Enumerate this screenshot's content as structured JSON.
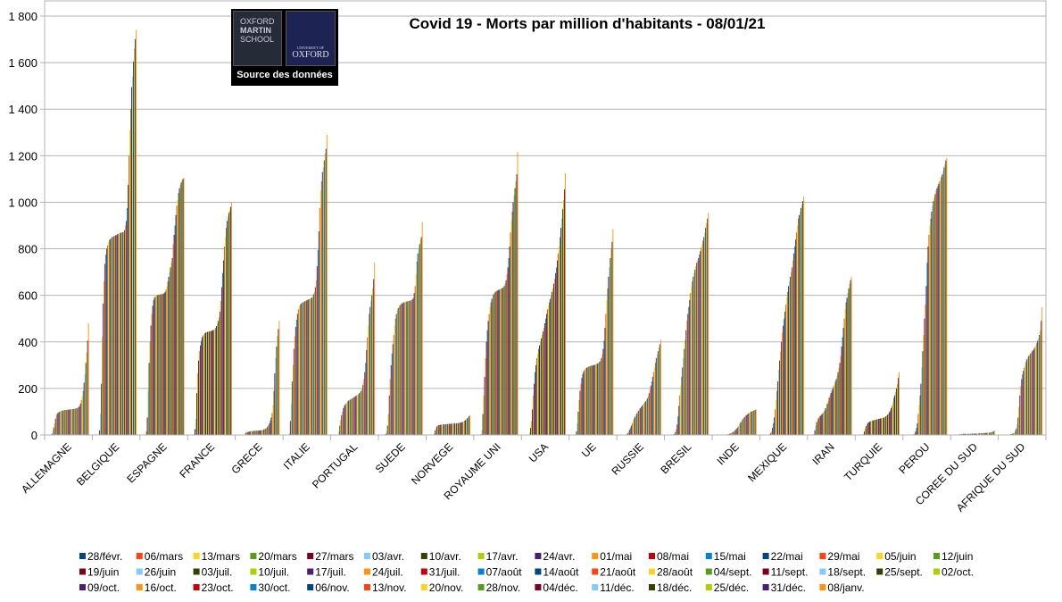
{
  "chart_data": {
    "type": "bar",
    "title": "Covid 19 - Morts par million d'habitants - 08/01/21",
    "xlabel": "",
    "ylabel": "",
    "ylim": [
      0,
      1800
    ],
    "yticks": [
      "0",
      "200",
      "400",
      "600",
      "800",
      "1 000",
      "1 200",
      "1 400",
      "1 600",
      "1 800"
    ],
    "grid": true,
    "legend_position": "bottom",
    "source_logo": {
      "line1": "OXFORD",
      "line2": "MARTIN",
      "line3": "SCHOOL",
      "university": "UNIVERSITY OF",
      "oxford": "OXFORD",
      "caption": "Source des données"
    },
    "palette": [
      "#004586",
      "#ff420e",
      "#ffd320",
      "#579d1c",
      "#7e0021",
      "#83caff",
      "#314004",
      "#aecf00",
      "#4b1f6f",
      "#ff950e",
      "#c5000b",
      "#0084d1"
    ],
    "dates": [
      "28/févr.",
      "06/mars",
      "13/mars",
      "20/mars",
      "27/mars",
      "03/avr.",
      "10/avr.",
      "17/avr.",
      "24/avr.",
      "01/mai",
      "08/mai",
      "15/mai",
      "22/mai",
      "29/mai",
      "05/juin",
      "12/juin",
      "19/juin",
      "26/juin",
      "03/juil.",
      "10/juil.",
      "17/juil.",
      "24/juil.",
      "31/juil.",
      "07/août",
      "14/août",
      "21/août",
      "28/août",
      "04/sept.",
      "11/sept.",
      "18/sept.",
      "25/sept.",
      "02/oct.",
      "09/oct.",
      "16/oct.",
      "23/oct.",
      "30/oct.",
      "06/nov.",
      "13/nov.",
      "20/nov.",
      "28/nov.",
      "04/déc.",
      "11/déc.",
      "18/déc.",
      "25/déc.",
      "31/déc.",
      "08/janv."
    ],
    "categories": [
      "ALLEMAGNE",
      "BELGIQUE",
      "ESPAGNE",
      "FRANCE",
      "GRECE",
      "ITALIE",
      "PORTUGAL",
      "SUEDE",
      "NORVEGE",
      "ROYAUME UNI",
      "USA",
      "UE",
      "RUSSIE",
      "BRESIL",
      "INDE",
      "MEXIQUE",
      "IRAN",
      "TURQUIE",
      "PEROU",
      "COREE DU SUD",
      "AFRIQUE DU SUD"
    ],
    "values": [
      [
        0,
        0,
        0,
        1,
        5,
        18,
        32,
        50,
        70,
        85,
        92,
        96,
        99,
        101,
        103,
        104,
        105,
        106,
        107,
        107,
        108,
        108,
        109,
        109,
        110,
        110,
        111,
        111,
        112,
        112,
        113,
        114,
        115,
        117,
        120,
        125,
        135,
        150,
        165,
        190,
        225,
        260,
        310,
        355,
        405,
        480
      ],
      [
        0,
        0,
        0,
        2,
        20,
        90,
        220,
        420,
        565,
        660,
        735,
        775,
        800,
        815,
        830,
        838,
        842,
        847,
        850,
        852,
        854,
        856,
        858,
        860,
        862,
        865,
        867,
        868,
        869,
        870,
        871,
        873,
        880,
        900,
        920,
        975,
        1075,
        1200,
        1310,
        1400,
        1495,
        1540,
        1605,
        1660,
        1700,
        1740
      ],
      [
        0,
        0,
        1,
        15,
        75,
        190,
        310,
        400,
        470,
        520,
        555,
        580,
        590,
        595,
        598,
        600,
        602,
        603,
        604,
        604,
        605,
        606,
        607,
        610,
        615,
        625,
        640,
        660,
        680,
        700,
        720,
        740,
        760,
        820,
        860,
        900,
        945,
        985,
        1010,
        1040,
        1060,
        1075,
        1085,
        1095,
        1100,
        1105
      ],
      [
        0,
        0,
        0,
        3,
        25,
        70,
        180,
        265,
        320,
        360,
        385,
        405,
        420,
        428,
        433,
        437,
        440,
        442,
        443,
        444,
        445,
        446,
        447,
        448,
        450,
        452,
        455,
        460,
        468,
        478,
        490,
        505,
        530,
        575,
        635,
        695,
        750,
        810,
        850,
        890,
        920,
        940,
        955,
        965,
        980,
        1000
      ],
      [
        0,
        0,
        0,
        0,
        0,
        1,
        2,
        8,
        10,
        12,
        13,
        14,
        15,
        16,
        16,
        17,
        17,
        18,
        18,
        18,
        18,
        19,
        19,
        19,
        20,
        20,
        21,
        22,
        24,
        26,
        28,
        32,
        36,
        42,
        50,
        62,
        75,
        95,
        130,
        190,
        265,
        330,
        380,
        425,
        455,
        490
      ],
      [
        0,
        0,
        0,
        5,
        60,
        135,
        230,
        300,
        370,
        425,
        465,
        495,
        520,
        540,
        552,
        560,
        565,
        568,
        570,
        572,
        574,
        576,
        578,
        580,
        582,
        584,
        586,
        588,
        590,
        595,
        605,
        615,
        635,
        665,
        725,
        795,
        875,
        975,
        1050,
        1090,
        1130,
        1150,
        1180,
        1210,
        1230,
        1290
      ],
      [
        0,
        0,
        0,
        0,
        1,
        15,
        40,
        65,
        85,
        100,
        115,
        125,
        130,
        135,
        140,
        145,
        148,
        150,
        153,
        155,
        157,
        160,
        162,
        165,
        168,
        170,
        172,
        175,
        180,
        185,
        190,
        200,
        215,
        240,
        270,
        310,
        365,
        420,
        470,
        520,
        550,
        575,
        600,
        630,
        670,
        740
      ],
      [
        0,
        0,
        0,
        1,
        5,
        15,
        40,
        90,
        170,
        240,
        300,
        350,
        390,
        430,
        470,
        500,
        520,
        535,
        545,
        552,
        558,
        562,
        565,
        567,
        569,
        571,
        572,
        573,
        574,
        575,
        576,
        577,
        578,
        580,
        583,
        590,
        610,
        640,
        690,
        745,
        780,
        800,
        820,
        840,
        850,
        915
      ],
      [
        0,
        0,
        0,
        0,
        2,
        8,
        20,
        30,
        37,
        40,
        42,
        43,
        44,
        44,
        45,
        45,
        46,
        46,
        46,
        47,
        47,
        47,
        48,
        48,
        48,
        49,
        49,
        49,
        50,
        50,
        50,
        51,
        51,
        52,
        53,
        54,
        55,
        56,
        58,
        62,
        64,
        68,
        72,
        75,
        80,
        85
      ],
      [
        0,
        0,
        0,
        0,
        3,
        20,
        90,
        170,
        250,
        330,
        400,
        450,
        490,
        520,
        550,
        570,
        585,
        595,
        605,
        610,
        615,
        618,
        620,
        622,
        624,
        626,
        628,
        630,
        632,
        635,
        640,
        650,
        665,
        690,
        720,
        760,
        810,
        870,
        920,
        960,
        1000,
        1030,
        1060,
        1090,
        1120,
        1215
      ],
      [
        0,
        0,
        0,
        0,
        2,
        10,
        30,
        60,
        110,
        170,
        220,
        270,
        300,
        330,
        350,
        370,
        385,
        400,
        415,
        430,
        445,
        460,
        480,
        500,
        520,
        540,
        555,
        570,
        585,
        600,
        615,
        630,
        650,
        670,
        695,
        720,
        750,
        780,
        810,
        850,
        890,
        930,
        970,
        1010,
        1055,
        1125
      ],
      [
        0,
        0,
        0,
        2,
        15,
        50,
        100,
        150,
        190,
        220,
        245,
        262,
        272,
        280,
        285,
        288,
        290,
        292,
        294,
        296,
        297,
        298,
        299,
        300,
        301,
        302,
        304,
        306,
        308,
        310,
        315,
        320,
        330,
        345,
        370,
        405,
        460,
        520,
        580,
        630,
        680,
        720,
        760,
        800,
        830,
        885
      ],
      [
        0,
        0,
        0,
        0,
        0,
        1,
        2,
        4,
        8,
        14,
        22,
        30,
        40,
        50,
        60,
        70,
        78,
        85,
        92,
        98,
        104,
        110,
        115,
        120,
        125,
        130,
        135,
        140,
        145,
        150,
        158,
        168,
        180,
        195,
        212,
        230,
        250,
        270,
        290,
        310,
        330,
        345,
        360,
        375,
        390,
        410
      ],
      [
        0,
        0,
        0,
        0,
        0,
        1,
        3,
        6,
        12,
        25,
        45,
        80,
        125,
        170,
        210,
        250,
        290,
        330,
        370,
        410,
        450,
        490,
        520,
        550,
        580,
        610,
        635,
        660,
        680,
        695,
        710,
        725,
        740,
        750,
        760,
        775,
        790,
        805,
        820,
        835,
        850,
        870,
        890,
        910,
        930,
        955
      ],
      [
        0,
        0,
        0,
        0,
        0,
        0,
        0,
        0,
        0,
        1,
        1,
        2,
        2,
        3,
        4,
        5,
        6,
        8,
        10,
        12,
        15,
        18,
        22,
        26,
        31,
        37,
        43,
        50,
        56,
        62,
        68,
        73,
        77,
        81,
        85,
        88,
        91,
        94,
        97,
        100,
        101,
        102,
        104,
        106,
        108,
        110
      ],
      [
        0,
        0,
        0,
        0,
        0,
        1,
        2,
        4,
        8,
        15,
        30,
        50,
        75,
        110,
        150,
        190,
        230,
        280,
        320,
        360,
        400,
        440,
        470,
        500,
        530,
        560,
        590,
        615,
        640,
        660,
        680,
        700,
        720,
        750,
        780,
        810,
        840,
        870,
        900,
        930,
        945,
        960,
        975,
        990,
        1005,
        1025
      ],
      [
        0,
        0,
        0,
        3,
        20,
        40,
        55,
        65,
        72,
        78,
        82,
        86,
        90,
        95,
        100,
        105,
        115,
        125,
        135,
        145,
        160,
        170,
        180,
        190,
        200,
        210,
        220,
        230,
        240,
        255,
        270,
        290,
        310,
        340,
        380,
        420,
        460,
        500,
        540,
        570,
        590,
        610,
        630,
        650,
        665,
        680
      ],
      [
        0,
        0,
        0,
        0,
        0,
        5,
        15,
        28,
        38,
        46,
        52,
        55,
        57,
        59,
        61,
        62,
        63,
        64,
        65,
        66,
        67,
        68,
        69,
        70,
        71,
        72,
        73,
        74,
        75,
        77,
        80,
        83,
        87,
        92,
        98,
        105,
        115,
        125,
        140,
        160,
        170,
        185,
        200,
        220,
        245,
        270
      ],
      [
        0,
        0,
        0,
        0,
        0,
        0,
        0,
        1,
        3,
        7,
        15,
        30,
        50,
        90,
        130,
        170,
        220,
        290,
        360,
        430,
        500,
        560,
        640,
        740,
        810,
        860,
        900,
        930,
        960,
        985,
        1005,
        1020,
        1035,
        1050,
        1060,
        1070,
        1080,
        1090,
        1100,
        1110,
        1120,
        1135,
        1150,
        1165,
        1180,
        1190
      ],
      [
        0,
        0,
        0,
        0,
        1,
        2,
        3,
        3,
        4,
        4,
        5,
        5,
        5,
        5,
        5,
        5,
        5,
        5,
        5,
        6,
        6,
        6,
        6,
        6,
        6,
        6,
        6,
        7,
        7,
        7,
        7,
        8,
        8,
        8,
        8,
        9,
        9,
        9,
        10,
        10,
        10,
        11,
        12,
        14,
        16,
        20
      ],
      [
        0,
        0,
        0,
        0,
        0,
        0,
        0,
        0,
        1,
        2,
        3,
        4,
        6,
        8,
        12,
        18,
        28,
        45,
        75,
        120,
        170,
        210,
        240,
        260,
        275,
        290,
        305,
        315,
        325,
        335,
        340,
        345,
        350,
        355,
        360,
        365,
        370,
        378,
        385,
        395,
        405,
        415,
        430,
        450,
        490,
        550
      ]
    ]
  }
}
